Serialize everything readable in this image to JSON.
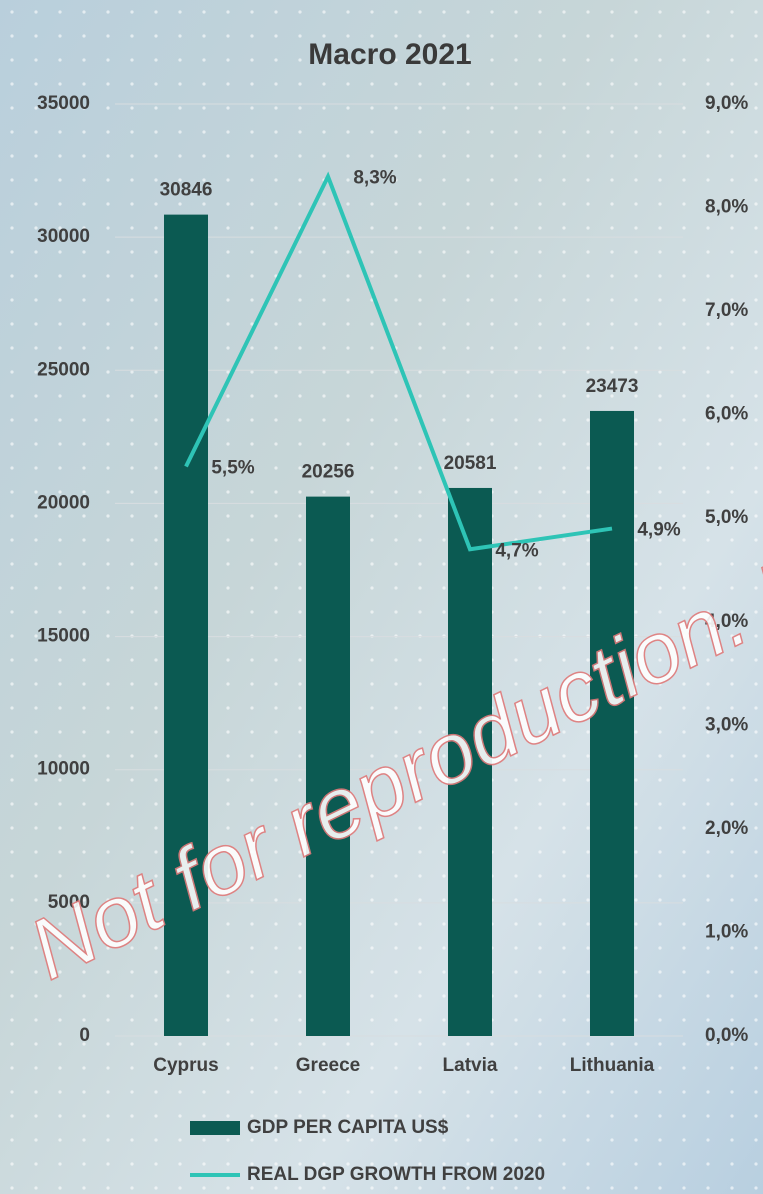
{
  "chart_data": {
    "type": "bar-line",
    "title": "Macro 2021",
    "categories": [
      "Cyprus",
      "Greece",
      "Latvia",
      "Lithuania"
    ],
    "series": [
      {
        "name": "GDP PER CAPITA US$",
        "type": "bar",
        "color": "#0b5a52",
        "values": [
          30846,
          20256,
          20581,
          23473
        ]
      },
      {
        "name": "REAL DGP GROWTH FROM 2020",
        "type": "line",
        "axis": "y2",
        "color": "#2ec4b6",
        "values": [
          5.5,
          8.3,
          4.7,
          4.9
        ],
        "value_labels": [
          "5,5%",
          "8,3%",
          "4,7%",
          "4,9%"
        ]
      }
    ],
    "ylim": [
      0,
      35000
    ],
    "yticks": [
      0,
      5000,
      10000,
      15000,
      20000,
      25000,
      30000,
      35000
    ],
    "y2lim": [
      0,
      9
    ],
    "y2ticks": [
      {
        "value": 0,
        "label": "0,0%"
      },
      {
        "value": 1,
        "label": "1,0%"
      },
      {
        "value": 2,
        "label": "2,0%"
      },
      {
        "value": 3,
        "label": "3,0%"
      },
      {
        "value": 4,
        "label": "4,0%"
      },
      {
        "value": 5,
        "label": "5,0%"
      },
      {
        "value": 6,
        "label": "6,0%"
      },
      {
        "value": 7,
        "label": "7,0%"
      },
      {
        "value": 8,
        "label": "8,0%"
      },
      {
        "value": 9,
        "label": "9,0%"
      }
    ],
    "grid": true,
    "legend": "bottom",
    "watermark": "Not for reproduction. D"
  }
}
